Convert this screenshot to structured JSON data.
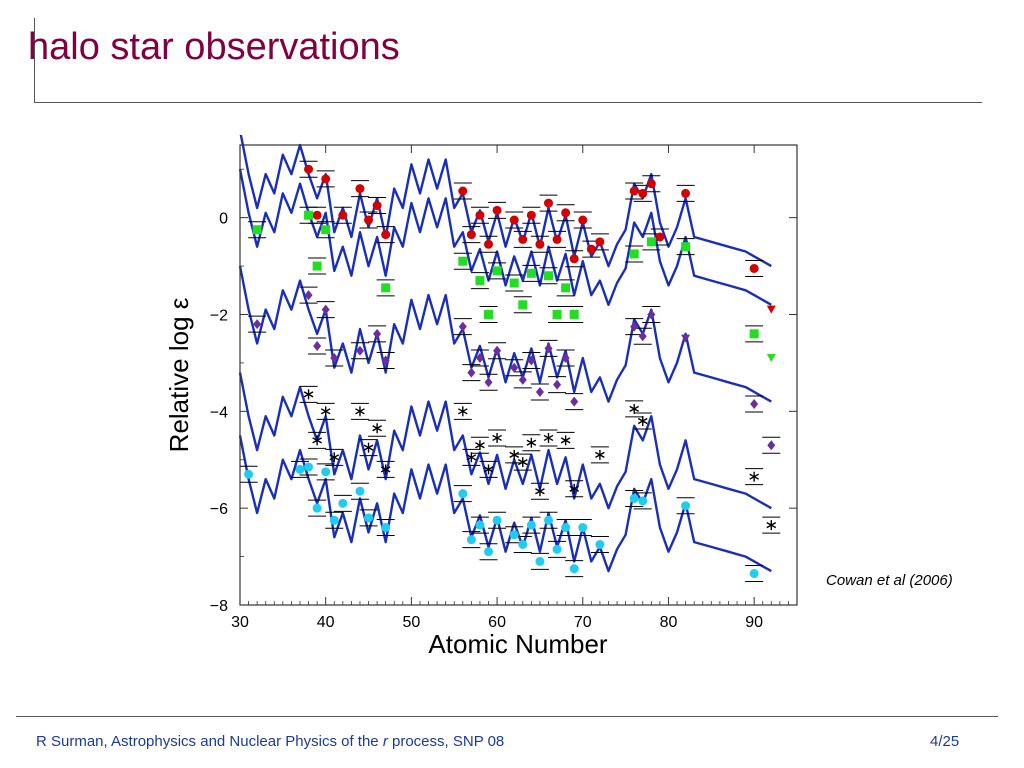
{
  "slide": {
    "title": "halo star observations",
    "citation": "Cowan et al (2006)",
    "footer_pre": "R Surman, Astrophysics and Nuclear Physics of the ",
    "footer_italic": "r",
    "footer_post": " process, SNP 08",
    "page": "4/25"
  },
  "chart_data": {
    "type": "scatter",
    "xlabel": "Atomic Number",
    "ylabel": "Relative log ε",
    "xlim": [
      30,
      95
    ],
    "ylim": [
      -8,
      1.5
    ],
    "xticks": [
      30,
      40,
      50,
      60,
      70,
      80,
      90
    ],
    "yticks": [
      0,
      -2,
      -4,
      -6,
      -8
    ],
    "grid": false,
    "legend": "none",
    "series": [
      {
        "color": "#d40000",
        "marker": "circle",
        "curve_offset": 0,
        "points": [
          [
            38,
            1.0
          ],
          [
            39,
            0.05
          ],
          [
            40,
            0.8
          ],
          [
            42,
            0.05
          ],
          [
            44,
            0.6
          ],
          [
            45,
            -0.05
          ],
          [
            46,
            0.25
          ],
          [
            47,
            -0.35
          ],
          [
            56,
            0.55
          ],
          [
            57,
            -0.35
          ],
          [
            58,
            0.05
          ],
          [
            59,
            -0.55
          ],
          [
            60,
            0.15
          ],
          [
            62,
            -0.05
          ],
          [
            63,
            -0.45
          ],
          [
            64,
            0.05
          ],
          [
            65,
            -0.55
          ],
          [
            66,
            0.3
          ],
          [
            67,
            -0.45
          ],
          [
            68,
            0.1
          ],
          [
            69,
            -0.85
          ],
          [
            70,
            -0.05
          ],
          [
            71,
            -0.65
          ],
          [
            72,
            -0.5
          ],
          [
            76,
            0.55
          ],
          [
            77,
            0.5
          ],
          [
            78,
            0.7
          ],
          [
            79,
            -0.4
          ],
          [
            82,
            0.5
          ],
          [
            90,
            -1.05
          ]
        ],
        "limits": [
          [
            92,
            -1.9
          ]
        ]
      },
      {
        "color": "#22dd22",
        "marker": "square",
        "curve_offset": -0.8,
        "points": [
          [
            32,
            -0.25
          ],
          [
            38,
            0.05
          ],
          [
            39,
            -1.0
          ],
          [
            40,
            -0.25
          ],
          [
            47,
            -1.45
          ],
          [
            56,
            -0.9
          ],
          [
            58,
            -1.3
          ],
          [
            59,
            -2.0
          ],
          [
            60,
            -1.1
          ],
          [
            62,
            -1.35
          ],
          [
            63,
            -1.8
          ],
          [
            64,
            -1.15
          ],
          [
            66,
            -1.2
          ],
          [
            67,
            -2.0
          ],
          [
            68,
            -1.45
          ],
          [
            69,
            -2.0
          ],
          [
            76,
            -0.75
          ],
          [
            78,
            -0.5
          ],
          [
            82,
            -0.6
          ],
          [
            90,
            -2.4
          ]
        ],
        "limits": [
          [
            92,
            -2.9
          ]
        ]
      },
      {
        "color": "#6a2f9a",
        "marker": "diamond",
        "curve_offset": -2.8,
        "points": [
          [
            32,
            -2.2
          ],
          [
            38,
            -1.6
          ],
          [
            39,
            -2.65
          ],
          [
            40,
            -1.9
          ],
          [
            41,
            -2.9
          ],
          [
            44,
            -2.75
          ],
          [
            46,
            -2.4
          ],
          [
            47,
            -2.95
          ],
          [
            56,
            -2.25
          ],
          [
            57,
            -3.2
          ],
          [
            58,
            -2.9
          ],
          [
            59,
            -3.4
          ],
          [
            60,
            -2.75
          ],
          [
            62,
            -3.1
          ],
          [
            63,
            -3.35
          ],
          [
            64,
            -2.95
          ],
          [
            65,
            -3.6
          ],
          [
            66,
            -2.7
          ],
          [
            67,
            -3.45
          ],
          [
            68,
            -2.9
          ],
          [
            69,
            -3.8
          ],
          [
            76,
            -2.25
          ],
          [
            77,
            -2.45
          ],
          [
            78,
            -2.0
          ],
          [
            90,
            -3.85
          ],
          [
            92,
            -4.7
          ]
        ],
        "limits": [
          [
            82,
            -2.5
          ]
        ]
      },
      {
        "color": "#000000",
        "marker": "asterisk",
        "curve_offset": -5.0,
        "points": [
          [
            38,
            -3.65
          ],
          [
            39,
            -4.6
          ],
          [
            40,
            -4.0
          ],
          [
            41,
            -4.95
          ],
          [
            44,
            -4.0
          ],
          [
            45,
            -4.75
          ],
          [
            46,
            -4.35
          ],
          [
            47,
            -5.2
          ],
          [
            56,
            -4.0
          ],
          [
            57,
            -4.95
          ],
          [
            58,
            -4.7
          ],
          [
            59,
            -5.2
          ],
          [
            60,
            -4.55
          ],
          [
            62,
            -4.9
          ],
          [
            63,
            -5.05
          ],
          [
            64,
            -4.65
          ],
          [
            65,
            -5.65
          ],
          [
            66,
            -4.55
          ],
          [
            68,
            -4.6
          ],
          [
            69,
            -5.6
          ],
          [
            72,
            -4.9
          ],
          [
            76,
            -3.95
          ],
          [
            77,
            -4.2
          ],
          [
            90,
            -5.35
          ],
          [
            92,
            -6.35
          ]
        ]
      },
      {
        "color": "#22ccee",
        "marker": "circle",
        "curve_offset": -6.3,
        "points": [
          [
            31,
            -5.3
          ],
          [
            37,
            -5.2
          ],
          [
            38,
            -5.15
          ],
          [
            39,
            -6.0
          ],
          [
            40,
            -5.25
          ],
          [
            41,
            -6.25
          ],
          [
            42,
            -5.9
          ],
          [
            44,
            -5.65
          ],
          [
            45,
            -6.2
          ],
          [
            47,
            -6.4
          ],
          [
            56,
            -5.7
          ],
          [
            57,
            -6.65
          ],
          [
            58,
            -6.35
          ],
          [
            59,
            -6.9
          ],
          [
            60,
            -6.25
          ],
          [
            62,
            -6.55
          ],
          [
            63,
            -6.75
          ],
          [
            64,
            -6.35
          ],
          [
            65,
            -7.1
          ],
          [
            66,
            -6.25
          ],
          [
            67,
            -6.85
          ],
          [
            68,
            -6.4
          ],
          [
            69,
            -7.25
          ],
          [
            70,
            -6.4
          ],
          [
            72,
            -6.75
          ],
          [
            76,
            -5.8
          ],
          [
            77,
            -5.85
          ],
          [
            82,
            -5.95
          ],
          [
            90,
            -7.35
          ]
        ]
      }
    ]
  }
}
